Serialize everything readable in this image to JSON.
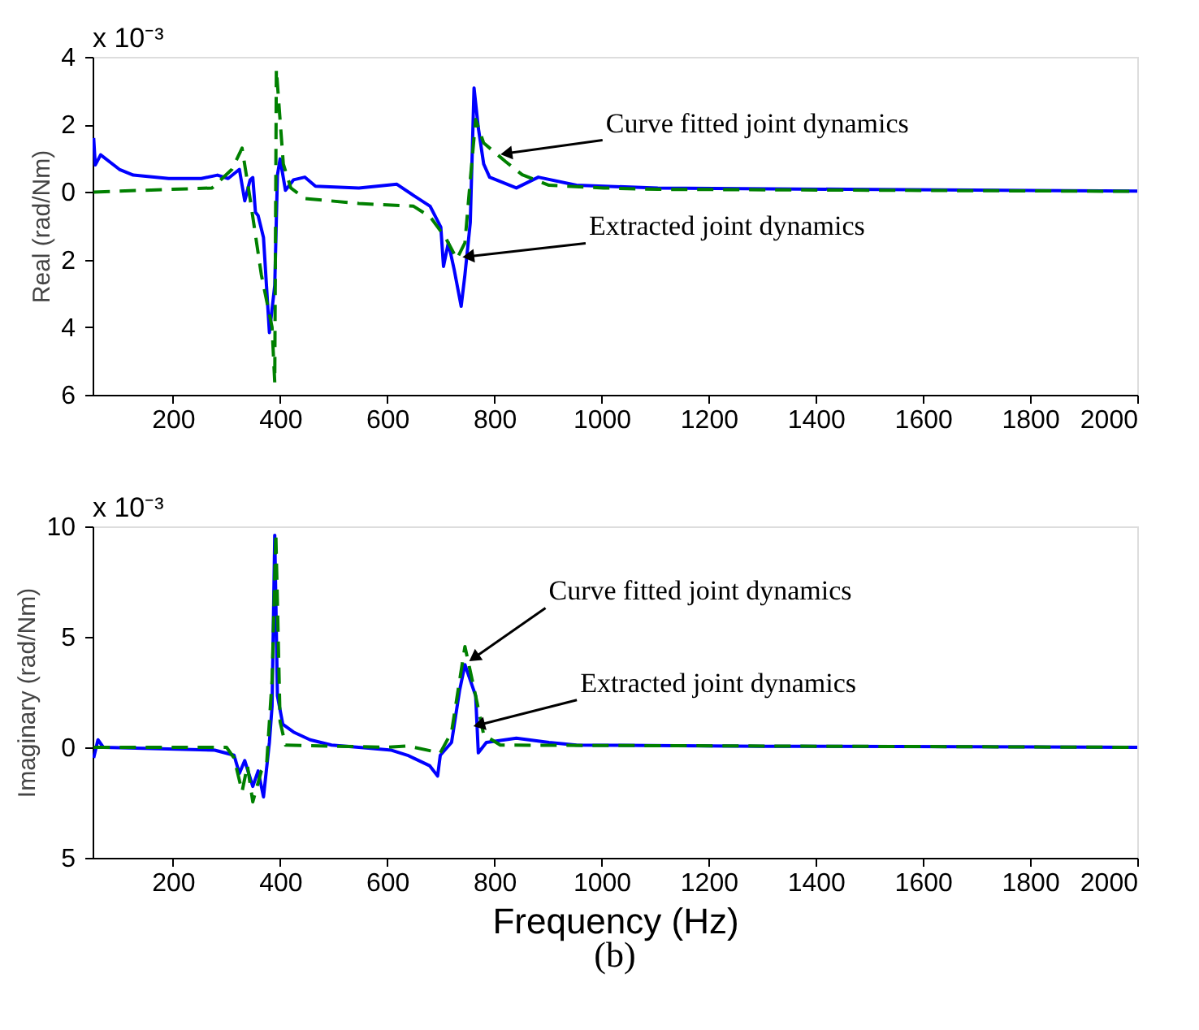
{
  "chart_data": [
    {
      "type": "line",
      "ylabel": "Real (rad/Nm)",
      "xlim": [
        50,
        2000
      ],
      "xticks": [
        200,
        400,
        600,
        800,
        1000,
        1200,
        1400,
        1600,
        1800,
        2000
      ],
      "ylim": [
        -6,
        4
      ],
      "yticks": [
        4,
        2,
        0,
        {
          "value": -2,
          "label": "2"
        },
        {
          "value": -4,
          "label": "4"
        },
        {
          "value": -6,
          "label": "6"
        }
      ],
      "grid": false,
      "marker": "none",
      "annotations": [
        "x 10⁻³",
        {
          "text": "Curve fitted joint dynamics",
          "x": 826,
          "y": 1.15
        },
        {
          "text": "Extracted joint dynamics",
          "x": 755,
          "y": -1.9
        }
      ],
      "series": [
        {
          "color": "#0000ff",
          "line_style": "solid",
          "x": [
            52,
            55,
            65,
            100,
            126,
            192,
            253,
            283,
            303,
            324,
            334,
            344,
            349,
            354,
            359,
            369,
            380,
            390,
            395,
            400,
            410,
            425,
            446,
            466,
            547,
            618,
            649,
            680,
            700,
            705,
            714,
            725,
            738,
            745,
            755,
            762,
            770,
            780,
            791,
            841,
            882,
            953,
            1105,
            1460,
            2000
          ],
          "values": [
            1.6,
            0.8,
            1.1,
            0.67,
            0.5,
            0.4,
            0.4,
            0.5,
            0.4,
            0.67,
            -0.26,
            0.36,
            0.43,
            -0.6,
            -0.7,
            -1.35,
            -4.16,
            -2.76,
            0.5,
            0.98,
            0.05,
            0.36,
            0.44,
            0.17,
            0.12,
            0.23,
            -0.1,
            -0.42,
            -1.04,
            -2.2,
            -1.5,
            -2.3,
            -3.38,
            -2.45,
            -0.9,
            3.08,
            1.9,
            0.83,
            0.44,
            0.12,
            0.44,
            0.2,
            0.12,
            0.08,
            0.03
          ]
        },
        {
          "color": "#008000",
          "line_style": "dashed",
          "x": [
            52,
            273,
            310,
            329,
            344,
            365,
            385,
            390,
            393,
            406,
            420,
            446,
            547,
            649,
            680,
            709,
            730,
            745,
            755,
            765,
            780,
            821,
            852,
            902,
            1004,
            1105,
            2000
          ],
          "values": [
            0,
            0.12,
            0.67,
            1.3,
            -0.2,
            -2.45,
            -4.0,
            -5.64,
            3.63,
            0.83,
            0.12,
            -0.19,
            -0.34,
            -0.42,
            -0.73,
            -1.36,
            -1.98,
            -1.5,
            0.36,
            2.15,
            1.45,
            0.9,
            0.51,
            0.2,
            0.12,
            0.08,
            0.02
          ]
        }
      ]
    },
    {
      "type": "line",
      "ylabel": "Imaginary (rad/Nm)",
      "xlabel": "Frequency (Hz)",
      "xlim": [
        50,
        2000
      ],
      "xticks": [
        200,
        400,
        600,
        800,
        1000,
        1200,
        1400,
        1600,
        1800,
        2000
      ],
      "ylim": [
        -5,
        10
      ],
      "yticks": [
        10,
        5,
        0,
        {
          "value": -5,
          "label": "5"
        }
      ],
      "grid": false,
      "marker": "none",
      "annotations": [
        "x 10⁻³",
        {
          "text": "Curve fitted joint dynamics",
          "x": 765,
          "y": 4.1
        },
        {
          "text": "Extracted joint dynamics",
          "x": 775,
          "y": 1.04
        },
        "(b)"
      ],
      "series": [
        {
          "color": "#0000ff",
          "line_style": "solid",
          "x": [
            52,
            60,
            70,
            278,
            314,
            324,
            334,
            349,
            359,
            369,
            380,
            385,
            390,
            395,
            405,
            425,
            456,
            496,
            547,
            608,
            638,
            679,
            694,
            699,
            720,
            735,
            745,
            755,
            765,
            770,
            785,
            841,
            902,
            953,
            1300,
            2000
          ],
          "values": [
            -0.48,
            0.34,
            0,
            -0.13,
            -0.36,
            -1.18,
            -0.6,
            -1.77,
            -1.07,
            -2.24,
            0.22,
            1.86,
            9.6,
            2.33,
            1.04,
            0.69,
            0.34,
            0.1,
            0,
            -0.13,
            -0.36,
            -0.83,
            -1.3,
            -0.36,
            0.22,
            2.57,
            3.74,
            3.04,
            2.33,
            -0.25,
            0.22,
            0.41,
            0.22,
            0.1,
            0.05,
            0
          ]
        },
        {
          "color": "#008000",
          "line_style": "dashed",
          "x": [
            52,
            300,
            314,
            329,
            339,
            349,
            365,
            375,
            385,
            392,
            400,
            410,
            600,
            638,
            699,
            720,
            745,
            765,
            780,
            811,
            2000
          ],
          "values": [
            0,
            0,
            -0.48,
            -2.0,
            -0.83,
            -2.47,
            -1.07,
            -0.71,
            3.04,
            9.7,
            1.16,
            0.1,
            0,
            0.06,
            -0.25,
            0.69,
            4.56,
            2.33,
            0.57,
            0.1,
            0
          ]
        }
      ]
    }
  ]
}
